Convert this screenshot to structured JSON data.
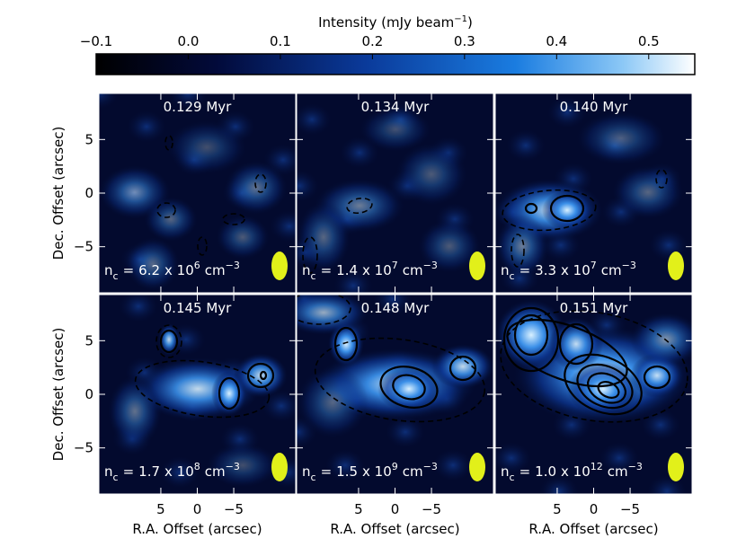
{
  "colorbar": {
    "label": "Intensity (mJy beam",
    "label_exponent": "−1",
    "label_close": ")",
    "lim": [
      -0.1,
      0.55
    ],
    "ticks": [
      {
        "value": -0.1,
        "label": "−0.1"
      },
      {
        "value": 0,
        "label": "0.0"
      },
      0.1,
      0.2,
      0.3,
      0.4,
      0.5
    ]
  },
  "density_label": {
    "symbol": "n",
    "subscript": "c",
    "equals": "=",
    "times": "x 10",
    "unit": "cm",
    "unit_exponent": "−3"
  },
  "panels": [
    {
      "time": "0.129 Myr",
      "mantissa": "6.2",
      "exponent": "6"
    },
    {
      "time": "0.134 Myr",
      "mantissa": "1.4",
      "exponent": "7"
    },
    {
      "time": "0.140 Myr",
      "mantissa": "3.3",
      "exponent": "7"
    },
    {
      "time": "0.145 Myr",
      "mantissa": "1.7",
      "exponent": "8"
    },
    {
      "time": "0.148 Myr",
      "mantissa": "1.5",
      "exponent": "9"
    },
    {
      "time": "0.151 Myr",
      "mantissa": "1.0",
      "exponent": "12"
    }
  ],
  "x_axis": {
    "label": "R.A. Offset (arcsec)",
    "lim": [
      13.5,
      -13.5
    ],
    "ticks": [
      5,
      0,
      {
        "value": -5,
        "label": "−5"
      }
    ]
  },
  "y_axis": {
    "label": "Dec. Offset (arcsec)",
    "lim": [
      -9.3,
      9.3
    ],
    "ticks": [
      {
        "value": -5,
        "label": "−5"
      },
      0,
      5
    ]
  }
}
